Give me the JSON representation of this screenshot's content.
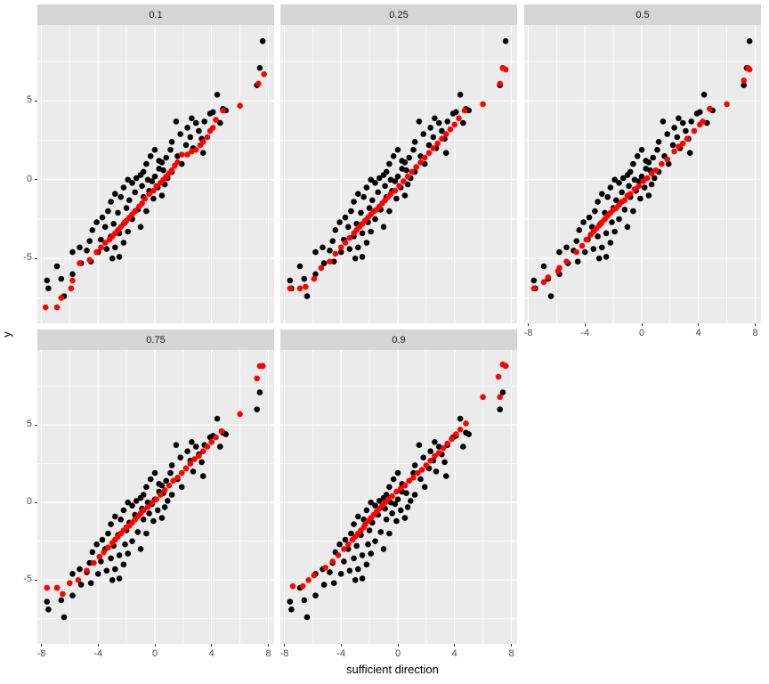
{
  "chart_data": {
    "type": "scatter",
    "title": "",
    "xlabel": "sufficient direction",
    "ylabel": "y",
    "facet_labels": [
      "0.1",
      "0.25",
      "0.5",
      "0.75",
      "0.9"
    ],
    "x_ticks": [
      -8,
      -4,
      0,
      4,
      8
    ],
    "y_ticks": [
      -5,
      0,
      5
    ],
    "x_minor_gridlines": [
      -6,
      -2,
      2,
      6
    ],
    "y_minor_gridlines": [
      -7.5,
      -2.5,
      2.5,
      7.5
    ],
    "xlim": [
      -8.28,
      8.41
    ],
    "ylim": [
      -9.12,
      9.83
    ],
    "grid": "on",
    "legend_position": "none",
    "colors": {
      "point_black": "#000000",
      "point_red": "#FF0000",
      "panel_background": "#EBEBEB",
      "strip_background": "#D5D5D5",
      "gridline": "#FFFFFF",
      "tick_text": "#4d4d4d",
      "strip_text": "#1a1a1a",
      "axis_title_text": "#000000"
    },
    "black_points_shared": [
      [
        7.6,
        8.8
      ],
      [
        7.4,
        7.1
      ],
      [
        7.2,
        6.0
      ],
      [
        4.4,
        5.4
      ],
      [
        4.8,
        4.5
      ],
      [
        4.1,
        4.3
      ],
      [
        3.9,
        4.2
      ],
      [
        3.5,
        3.7
      ],
      [
        2.9,
        3.6
      ],
      [
        3.1,
        3.1
      ],
      [
        1.5,
        3.7
      ],
      [
        2.5,
        2.7
      ],
      [
        2.3,
        3.3
      ],
      [
        2.6,
        3.9
      ],
      [
        1.2,
        2.4
      ],
      [
        1.8,
        2.9
      ],
      [
        0.8,
        1.4
      ],
      [
        1.6,
        1.5
      ],
      [
        0.3,
        1.2
      ],
      [
        0.5,
        1.1
      ],
      [
        -0.3,
        1.5
      ],
      [
        0.3,
        0.7
      ],
      [
        0.6,
        0.6
      ],
      [
        -0.8,
        0.5
      ],
      [
        0.0,
        1.9
      ],
      [
        1.1,
        1.9
      ],
      [
        2.2,
        2.2
      ],
      [
        2.7,
        2.0
      ],
      [
        3.3,
        2.6
      ],
      [
        3.4,
        1.7
      ],
      [
        4.6,
        3.6
      ],
      [
        5.0,
        4.4
      ],
      [
        1.9,
        1.0
      ],
      [
        1.2,
        0.5
      ],
      [
        0.9,
        0.1
      ],
      [
        0.0,
        0.2
      ],
      [
        -0.2,
        -0.1
      ],
      [
        -0.6,
        1.0
      ],
      [
        -0.5,
        0.0
      ],
      [
        -1.0,
        0.3
      ],
      [
        -1.3,
        0.1
      ],
      [
        -0.9,
        -0.4
      ],
      [
        -0.4,
        -0.7
      ],
      [
        0.2,
        -0.5
      ],
      [
        0.7,
        -0.3
      ],
      [
        -1.6,
        -0.2
      ],
      [
        -1.9,
        0.0
      ],
      [
        -2.2,
        -0.5
      ],
      [
        -1.4,
        -0.8
      ],
      [
        -0.8,
        -1.1
      ],
      [
        -0.1,
        -1.2
      ],
      [
        0.5,
        -1.0
      ],
      [
        -1.8,
        -1.3
      ],
      [
        -2.4,
        -1.1
      ],
      [
        -2.8,
        -0.9
      ],
      [
        -3.1,
        -1.4
      ],
      [
        -2.0,
        -1.8
      ],
      [
        -1.2,
        -1.9
      ],
      [
        -0.6,
        -2.0
      ],
      [
        -2.6,
        -2.1
      ],
      [
        -3.3,
        -2.0
      ],
      [
        -3.7,
        -2.4
      ],
      [
        -1.6,
        -2.5
      ],
      [
        -2.1,
        -2.7
      ],
      [
        -2.9,
        -2.8
      ],
      [
        -3.5,
        -3.0
      ],
      [
        -4.1,
        -2.7
      ],
      [
        -4.4,
        -3.2
      ],
      [
        -1.0,
        -3.0
      ],
      [
        -1.9,
        -3.3
      ],
      [
        -2.5,
        -3.4
      ],
      [
        -3.1,
        -3.6
      ],
      [
        -3.8,
        -3.8
      ],
      [
        -4.6,
        -3.9
      ],
      [
        -2.2,
        -4.0
      ],
      [
        -2.8,
        -4.3
      ],
      [
        -3.4,
        -4.4
      ],
      [
        -4.0,
        -4.6
      ],
      [
        -4.8,
        -4.5
      ],
      [
        -5.3,
        -4.3
      ],
      [
        -2.5,
        -4.9
      ],
      [
        -3.0,
        -5.0
      ],
      [
        -5.8,
        -4.6
      ],
      [
        -5.2,
        -5.3
      ],
      [
        -4.5,
        -5.2
      ],
      [
        -5.8,
        -6.0
      ],
      [
        -6.9,
        -5.5
      ],
      [
        -6.6,
        -6.3
      ],
      [
        -7.6,
        -6.4
      ],
      [
        -7.5,
        -6.9
      ],
      [
        -6.4,
        -7.4
      ]
    ],
    "facets": [
      {
        "label": "0.1",
        "red_points": [
          [
            7.7,
            6.7
          ],
          [
            7.3,
            6.1
          ],
          [
            6.0,
            4.7
          ],
          [
            4.8,
            4.4
          ],
          [
            4.3,
            3.8
          ],
          [
            4.1,
            3.3
          ],
          [
            3.9,
            3.1
          ],
          [
            3.7,
            2.7
          ],
          [
            3.4,
            2.4
          ],
          [
            3.2,
            2.2
          ],
          [
            2.9,
            1.9
          ],
          [
            2.6,
            1.8
          ],
          [
            2.3,
            1.6
          ],
          [
            1.9,
            1.6
          ],
          [
            1.6,
            1.1
          ],
          [
            1.4,
            0.9
          ],
          [
            1.2,
            0.6
          ],
          [
            1.0,
            0.4
          ],
          [
            0.8,
            0.2
          ],
          [
            0.6,
            0.0
          ],
          [
            0.4,
            -0.2
          ],
          [
            0.1,
            -0.4
          ],
          [
            -0.1,
            -0.7
          ],
          [
            -0.4,
            -0.9
          ],
          [
            -0.7,
            -1.2
          ],
          [
            -0.9,
            -1.5
          ],
          [
            -1.1,
            -1.7
          ],
          [
            -1.4,
            -2.0
          ],
          [
            -1.6,
            -2.2
          ],
          [
            -1.8,
            -2.4
          ],
          [
            -2.0,
            -2.6
          ],
          [
            -2.2,
            -2.8
          ],
          [
            -2.4,
            -3.0
          ],
          [
            -2.6,
            -3.2
          ],
          [
            -2.8,
            -3.4
          ],
          [
            -3.0,
            -3.6
          ],
          [
            -3.2,
            -3.8
          ],
          [
            -3.5,
            -4.0
          ],
          [
            -3.8,
            -4.3
          ],
          [
            -4.1,
            -4.6
          ],
          [
            -4.6,
            -5.1
          ],
          [
            -5.3,
            -5.3
          ],
          [
            -5.8,
            -6.4
          ],
          [
            -5.9,
            -6.9
          ],
          [
            -6.6,
            -7.5
          ],
          [
            -6.9,
            -8.1
          ],
          [
            -7.7,
            -8.1
          ]
        ]
      },
      {
        "label": "0.25",
        "red_points": [
          [
            7.6,
            7.0
          ],
          [
            7.4,
            7.1
          ],
          [
            7.2,
            6.1
          ],
          [
            6.0,
            4.8
          ],
          [
            4.7,
            4.4
          ],
          [
            4.3,
            3.9
          ],
          [
            4.0,
            3.5
          ],
          [
            3.7,
            3.2
          ],
          [
            3.4,
            2.9
          ],
          [
            3.1,
            2.6
          ],
          [
            2.8,
            2.3
          ],
          [
            2.5,
            2.0
          ],
          [
            2.2,
            1.7
          ],
          [
            1.9,
            1.4
          ],
          [
            1.6,
            1.1
          ],
          [
            1.3,
            0.8
          ],
          [
            1.0,
            0.5
          ],
          [
            0.7,
            0.2
          ],
          [
            0.4,
            -0.1
          ],
          [
            0.1,
            -0.4
          ],
          [
            -0.2,
            -0.7
          ],
          [
            -0.5,
            -0.9
          ],
          [
            -0.7,
            -1.1
          ],
          [
            -0.9,
            -1.3
          ],
          [
            -1.1,
            -1.5
          ],
          [
            -1.3,
            -1.7
          ],
          [
            -1.5,
            -1.9
          ],
          [
            -1.7,
            -2.0
          ],
          [
            -1.9,
            -2.2
          ],
          [
            -2.1,
            -2.4
          ],
          [
            -2.3,
            -2.6
          ],
          [
            -2.5,
            -2.8
          ],
          [
            -2.7,
            -3.0
          ],
          [
            -2.9,
            -3.2
          ],
          [
            -3.1,
            -3.4
          ],
          [
            -3.4,
            -3.7
          ],
          [
            -3.7,
            -4.0
          ],
          [
            -4.0,
            -4.3
          ],
          [
            -4.4,
            -4.7
          ],
          [
            -4.8,
            -5.2
          ],
          [
            -5.4,
            -5.6
          ],
          [
            -5.9,
            -6.3
          ],
          [
            -6.5,
            -6.8
          ],
          [
            -6.9,
            -6.9
          ],
          [
            -7.6,
            -6.9
          ]
        ]
      },
      {
        "label": "0.5",
        "red_points": [
          [
            7.6,
            7.0
          ],
          [
            7.5,
            7.1
          ],
          [
            7.2,
            6.3
          ],
          [
            6.0,
            4.8
          ],
          [
            4.8,
            4.5
          ],
          [
            4.3,
            3.7
          ],
          [
            4.1,
            3.5
          ],
          [
            3.7,
            3.1
          ],
          [
            3.2,
            2.6
          ],
          [
            2.9,
            2.3
          ],
          [
            2.6,
            2.1
          ],
          [
            2.3,
            1.8
          ],
          [
            1.8,
            1.3
          ],
          [
            1.4,
            1.0
          ],
          [
            1.0,
            0.6
          ],
          [
            0.7,
            0.4
          ],
          [
            0.4,
            0.1
          ],
          [
            0.1,
            -0.1
          ],
          [
            -0.2,
            -0.4
          ],
          [
            -0.5,
            -0.6
          ],
          [
            -0.8,
            -0.9
          ],
          [
            -1.0,
            -1.0
          ],
          [
            -1.2,
            -1.3
          ],
          [
            -1.4,
            -1.4
          ],
          [
            -1.6,
            -1.6
          ],
          [
            -1.8,
            -1.8
          ],
          [
            -2.0,
            -1.9
          ],
          [
            -2.2,
            -2.1
          ],
          [
            -2.4,
            -2.3
          ],
          [
            -2.6,
            -2.5
          ],
          [
            -2.8,
            -2.7
          ],
          [
            -3.0,
            -2.9
          ],
          [
            -3.2,
            -3.1
          ],
          [
            -3.4,
            -3.3
          ],
          [
            -3.6,
            -3.5
          ],
          [
            -3.9,
            -3.8
          ],
          [
            -4.2,
            -4.2
          ],
          [
            -4.6,
            -4.6
          ],
          [
            -5.3,
            -5.2
          ],
          [
            -5.8,
            -5.6
          ],
          [
            -5.9,
            -5.8
          ],
          [
            -6.6,
            -6.2
          ],
          [
            -6.9,
            -6.5
          ],
          [
            -7.6,
            -6.9
          ]
        ]
      },
      {
        "label": "0.75",
        "red_points": [
          [
            7.6,
            8.8
          ],
          [
            7.4,
            8.8
          ],
          [
            7.2,
            8.0
          ],
          [
            6.0,
            5.7
          ],
          [
            4.7,
            4.6
          ],
          [
            4.3,
            4.2
          ],
          [
            4.0,
            3.9
          ],
          [
            3.7,
            3.6
          ],
          [
            3.4,
            3.3
          ],
          [
            3.1,
            3.0
          ],
          [
            2.8,
            2.8
          ],
          [
            2.5,
            2.5
          ],
          [
            2.2,
            2.2
          ],
          [
            1.9,
            1.9
          ],
          [
            1.6,
            1.6
          ],
          [
            1.3,
            1.4
          ],
          [
            1.0,
            1.1
          ],
          [
            0.7,
            0.8
          ],
          [
            0.4,
            0.5
          ],
          [
            0.1,
            0.2
          ],
          [
            -0.2,
            0.0
          ],
          [
            -0.5,
            -0.3
          ],
          [
            -0.8,
            -0.5
          ],
          [
            -1.0,
            -0.7
          ],
          [
            -1.2,
            -0.9
          ],
          [
            -1.4,
            -1.1
          ],
          [
            -1.6,
            -1.3
          ],
          [
            -1.8,
            -1.5
          ],
          [
            -2.0,
            -1.6
          ],
          [
            -2.2,
            -1.8
          ],
          [
            -2.4,
            -2.0
          ],
          [
            -2.6,
            -2.2
          ],
          [
            -2.8,
            -2.4
          ],
          [
            -3.0,
            -2.6
          ],
          [
            -3.3,
            -2.9
          ],
          [
            -3.6,
            -3.2
          ],
          [
            -3.9,
            -3.5
          ],
          [
            -4.3,
            -3.9
          ],
          [
            -4.8,
            -4.4
          ],
          [
            -5.4,
            -5.0
          ],
          [
            -6.0,
            -5.2
          ],
          [
            -6.5,
            -5.9
          ],
          [
            -6.9,
            -5.5
          ],
          [
            -7.6,
            -5.5
          ]
        ]
      },
      {
        "label": "0.9",
        "red_points": [
          [
            7.6,
            8.8
          ],
          [
            7.4,
            8.9
          ],
          [
            7.1,
            8.1
          ],
          [
            7.2,
            6.8
          ],
          [
            6.0,
            6.8
          ],
          [
            4.8,
            5.1
          ],
          [
            4.4,
            4.7
          ],
          [
            4.1,
            4.4
          ],
          [
            3.8,
            4.1
          ],
          [
            3.5,
            3.8
          ],
          [
            3.2,
            3.5
          ],
          [
            2.9,
            3.2
          ],
          [
            2.6,
            3.0
          ],
          [
            2.3,
            2.7
          ],
          [
            2.0,
            2.4
          ],
          [
            1.7,
            2.1
          ],
          [
            1.4,
            1.9
          ],
          [
            1.1,
            1.6
          ],
          [
            0.8,
            1.4
          ],
          [
            0.5,
            1.1
          ],
          [
            0.2,
            0.9
          ],
          [
            -0.1,
            0.7
          ],
          [
            -0.4,
            0.4
          ],
          [
            -0.7,
            0.2
          ],
          [
            -0.9,
            0.0
          ],
          [
            -1.1,
            -0.2
          ],
          [
            -1.3,
            -0.4
          ],
          [
            -1.5,
            -0.6
          ],
          [
            -1.7,
            -0.8
          ],
          [
            -1.9,
            -1.0
          ],
          [
            -2.1,
            -1.2
          ],
          [
            -2.3,
            -1.4
          ],
          [
            -2.4,
            -1.6
          ],
          [
            -2.6,
            -1.8
          ],
          [
            -2.8,
            -2.0
          ],
          [
            -3.0,
            -2.2
          ],
          [
            -3.2,
            -2.4
          ],
          [
            -3.5,
            -2.7
          ],
          [
            -3.8,
            -3.0
          ],
          [
            -4.2,
            -3.4
          ],
          [
            -4.6,
            -3.8
          ],
          [
            -5.1,
            -4.2
          ],
          [
            -5.9,
            -4.7
          ],
          [
            -6.3,
            -5.0
          ],
          [
            -6.7,
            -5.4
          ],
          [
            -7.4,
            -5.4
          ]
        ]
      }
    ]
  }
}
